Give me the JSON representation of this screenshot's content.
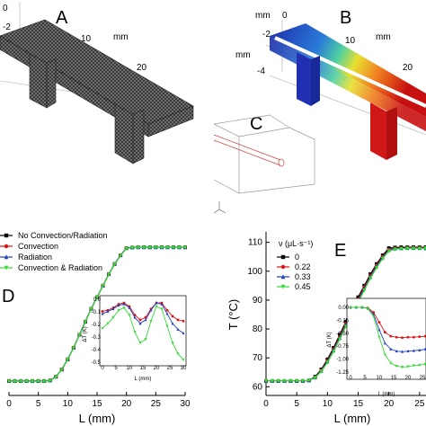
{
  "panels": {
    "A": {
      "letter": "A",
      "axis_ticks": [
        "0",
        "-2",
        "10",
        "mm",
        "20"
      ]
    },
    "B": {
      "letter": "B",
      "axis_ticks": [
        "mm",
        "0",
        "-2",
        "mm",
        "-4",
        "10",
        "mm",
        "20"
      ]
    },
    "C": {
      "letter": "C"
    },
    "D": {
      "letter": "D"
    },
    "E": {
      "letter": "E"
    }
  },
  "chart_data": [
    {
      "type": "line",
      "panel": "D",
      "xlabel": "L (mm)",
      "ylabel": "",
      "xlim": [
        0,
        30
      ],
      "x_ticks": [
        "0",
        "5",
        "10",
        "15",
        "20",
        "25",
        "30"
      ],
      "legend": [
        "No Convection/Radiation",
        "Convection",
        "Radiation",
        "Convection & Radiation"
      ],
      "colors": [
        "#000000",
        "#e01010",
        "#1f3fbf",
        "#33dd33"
      ],
      "x": [
        0,
        1,
        2,
        3,
        4,
        5,
        6,
        7,
        8,
        9,
        10,
        11,
        12,
        13,
        14,
        15,
        16,
        17,
        18,
        19,
        20,
        21,
        22,
        23,
        24,
        25,
        26,
        27,
        28,
        29,
        30
      ],
      "series": [
        {
          "name": "No Convection/Radiation",
          "values": [
            62,
            62,
            62,
            62,
            62,
            62,
            62,
            62.2,
            63.5,
            66,
            69.5,
            73.5,
            78,
            82.5,
            87,
            91,
            95,
            99,
            102.5,
            105.5,
            108,
            108.2,
            108.3,
            108.3,
            108.3,
            108.3,
            108.3,
            108.3,
            108.3,
            108.3,
            108.3
          ]
        },
        {
          "name": "Convection",
          "values": [
            62,
            62,
            62,
            62,
            62,
            62,
            62,
            62.2,
            63.5,
            66,
            69.5,
            73.5,
            78,
            82.5,
            87,
            91,
            95,
            99,
            102.5,
            105.5,
            108,
            108.2,
            108.3,
            108.3,
            108.3,
            108.3,
            108.3,
            108.3,
            108.3,
            108.3,
            108.3
          ]
        },
        {
          "name": "Radiation",
          "values": [
            62,
            62,
            62,
            62,
            62,
            62,
            62,
            62.2,
            63.5,
            66,
            69.5,
            73.5,
            78,
            82.5,
            87,
            91,
            95,
            99,
            102.5,
            105.5,
            108,
            108.2,
            108.3,
            108.3,
            108.3,
            108.3,
            108.3,
            108.3,
            108.3,
            108.3,
            108.3
          ]
        },
        {
          "name": "Convection & Radiation",
          "values": [
            61.9,
            61.9,
            61.9,
            61.9,
            61.9,
            61.9,
            61.9,
            62.1,
            63.4,
            65.9,
            69.4,
            73.4,
            77.9,
            82.4,
            86.9,
            90.9,
            94.9,
            98.9,
            102.4,
            105.4,
            107.9,
            108.1,
            108.2,
            108.2,
            108.2,
            108.2,
            108.2,
            108.2,
            108.2,
            108.2,
            108.2
          ]
        }
      ],
      "inset": {
        "ylabel": "ΔT (K)",
        "xlabel": "L (mm)",
        "x_ticks": [
          "0",
          "5",
          "10",
          "15",
          "20",
          "25",
          "30"
        ],
        "y_ticks": [
          "0.0",
          "-0.1",
          "-0.2",
          "-0.3",
          "-0.4",
          "-0.5"
        ],
        "x": [
          0,
          2,
          4,
          6,
          8,
          10,
          12,
          14,
          16,
          18,
          20,
          22,
          24,
          26,
          28,
          30
        ],
        "series": [
          {
            "name": "Convection",
            "values": [
              -0.1,
              -0.09,
              -0.07,
              -0.04,
              -0.03,
              -0.06,
              -0.13,
              -0.17,
              -0.15,
              -0.08,
              -0.03,
              -0.03,
              -0.09,
              -0.14,
              -0.17,
              -0.18
            ]
          },
          {
            "name": "Radiation",
            "values": [
              -0.12,
              -0.1,
              -0.08,
              -0.05,
              -0.04,
              -0.07,
              -0.15,
              -0.2,
              -0.17,
              -0.09,
              -0.03,
              -0.04,
              -0.12,
              -0.2,
              -0.25,
              -0.28
            ]
          },
          {
            "name": "Convection & Radiation",
            "values": [
              -0.24,
              -0.2,
              -0.15,
              -0.09,
              -0.07,
              -0.13,
              -0.27,
              -0.36,
              -0.33,
              -0.18,
              -0.06,
              -0.08,
              -0.22,
              -0.36,
              -0.45,
              -0.5
            ]
          }
        ]
      }
    },
    {
      "type": "line",
      "panel": "E",
      "xlabel": "L (mm)",
      "ylabel": "T (°C)",
      "xlim": [
        0,
        30
      ],
      "ylim": [
        60,
        110
      ],
      "x_ticks": [
        "0",
        "5",
        "10",
        "15",
        "20",
        "25",
        "30"
      ],
      "y_ticks": [
        "60",
        "70",
        "80",
        "90",
        "100",
        "110"
      ],
      "legend_title": "ν (μL·s⁻¹)",
      "legend": [
        "0",
        "0.22",
        "0.33",
        "0.45"
      ],
      "colors": [
        "#000000",
        "#e01010",
        "#1f3fbf",
        "#33dd33"
      ],
      "x": [
        0,
        1,
        2,
        3,
        4,
        5,
        6,
        7,
        8,
        9,
        10,
        11,
        12,
        13,
        14,
        15,
        16,
        17,
        18,
        19,
        20,
        21,
        22,
        23,
        24,
        25,
        26,
        27,
        28,
        29,
        30
      ],
      "series": [
        {
          "name": "0",
          "values": [
            62,
            62,
            62,
            62,
            62,
            62,
            62,
            62.2,
            63.5,
            66,
            69.5,
            73.5,
            78,
            82.5,
            87,
            91,
            95,
            99,
            102.5,
            105.5,
            108,
            108.2,
            108.3,
            108.3,
            108.3,
            108.3,
            108.3,
            108.3,
            108.3,
            108.3,
            108.3
          ]
        },
        {
          "name": "0.22",
          "values": [
            62,
            62,
            62,
            62,
            62,
            62,
            62,
            62.2,
            63.3,
            65.7,
            69,
            73,
            77.3,
            81.8,
            86.2,
            90.3,
            94.4,
            98.4,
            102,
            105,
            107.5,
            107.9,
            108,
            108.1,
            108.1,
            108.1,
            108.1,
            108.1,
            108.1,
            108.1,
            108.1
          ]
        },
        {
          "name": "0.33",
          "values": [
            62,
            62,
            62,
            62,
            62,
            62,
            62,
            62.2,
            63.2,
            65.5,
            68.7,
            72.6,
            76.9,
            81.3,
            85.7,
            89.8,
            93.9,
            98,
            101.6,
            104.7,
            107.3,
            107.8,
            107.9,
            108,
            108,
            108,
            108,
            108,
            108,
            108,
            108
          ]
        },
        {
          "name": "0.45",
          "values": [
            62,
            62,
            62,
            62,
            62,
            62,
            62,
            62.2,
            63.1,
            65.3,
            68.4,
            72.2,
            76.5,
            80.9,
            85.2,
            89.3,
            93.4,
            97.6,
            101.2,
            104.4,
            107,
            107.6,
            107.8,
            107.9,
            107.9,
            107.9,
            107.9,
            107.9,
            107.9,
            107.9,
            107.9
          ]
        }
      ],
      "inset": {
        "ylabel": "ΔT (K)",
        "xlabel": "L (mm)",
        "x_ticks": [
          "0",
          "5",
          "10",
          "15",
          "20",
          "25"
        ],
        "y_ticks": [
          "0.00",
          "-0.25",
          "-0.50",
          "-0.75",
          "-1.00",
          "-1.25"
        ],
        "x": [
          0,
          2,
          4,
          6,
          8,
          10,
          12,
          14,
          16,
          18,
          20,
          22,
          24,
          26,
          28,
          30
        ],
        "series": [
          {
            "name": "0.22",
            "values": [
              0,
              0,
              0,
              -0.01,
              -0.1,
              -0.3,
              -0.5,
              -0.58,
              -0.6,
              -0.61,
              -0.6,
              -0.6,
              -0.59,
              -0.58,
              -0.57,
              -0.56
            ]
          },
          {
            "name": "0.33",
            "values": [
              0,
              0,
              0,
              -0.02,
              -0.14,
              -0.45,
              -0.72,
              -0.84,
              -0.88,
              -0.89,
              -0.88,
              -0.87,
              -0.86,
              -0.84,
              -0.83,
              -0.82
            ]
          },
          {
            "name": "0.45",
            "values": [
              0,
              0,
              0,
              -0.02,
              -0.18,
              -0.6,
              -0.95,
              -1.12,
              -1.18,
              -1.2,
              -1.19,
              -1.17,
              -1.16,
              -1.14,
              -1.12,
              -1.1
            ]
          }
        ]
      }
    }
  ]
}
